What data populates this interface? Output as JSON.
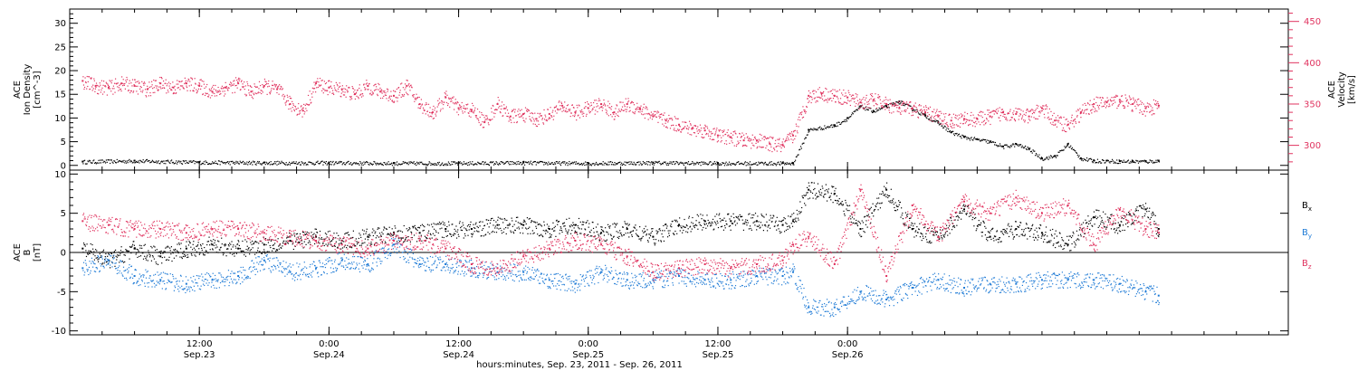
{
  "chart_data": [
    {
      "type": "scatter",
      "panel": "plasma",
      "left_axis": {
        "label_lines": [
          "ACE",
          "Ion Density",
          "[cm^-3]"
        ],
        "ylim": [
          -1,
          33
        ],
        "ticks": [
          0,
          5,
          10,
          15,
          20,
          25,
          30
        ],
        "tick_labels": [
          "0",
          "5",
          "10",
          "15",
          "20",
          "25",
          "30"
        ],
        "color": "#000000"
      },
      "right_axis": {
        "label_lines": [
          "ACE",
          "Velocity",
          "[km/s]"
        ],
        "ylim": [
          270,
          465
        ],
        "ticks": [
          300,
          350,
          400,
          450
        ],
        "tick_labels": [
          "300",
          "350",
          "400",
          "450"
        ],
        "color": "#e0335f"
      },
      "series": [
        {
          "axis": "left",
          "color": "#000000",
          "x": [
            -0.95,
            -0.75,
            -0.5,
            -0.25,
            0,
            0.25,
            0.5,
            0.75,
            1.0,
            1.25,
            1.5,
            1.75,
            1.79,
            1.85,
            1.95,
            2.0,
            2.05,
            2.1,
            2.15,
            2.2,
            2.25,
            2.3,
            2.35,
            2.4,
            2.45,
            2.5,
            2.55,
            2.6,
            2.65,
            2.7,
            2.75,
            2.8,
            2.85,
            2.9,
            2.95,
            3.0,
            3.05,
            3.1,
            3.15,
            3.2
          ],
          "y": [
            0.8,
            1.0,
            0.7,
            0.6,
            0.6,
            0.5,
            0.5,
            0.6,
            0.5,
            0.6,
            0.5,
            0.5,
            0.5,
            7.5,
            8.5,
            10.0,
            12.5,
            11.5,
            12.5,
            13.5,
            12.0,
            10.5,
            9.0,
            7.0,
            6.0,
            5.5,
            5.0,
            4.0,
            4.5,
            3.5,
            1.5,
            2.0,
            4.5,
            1.5,
            1.0,
            1.0,
            0.9,
            0.9,
            0.9,
            1.0
          ]
        },
        {
          "axis": "right",
          "color": "#e0335f",
          "x": [
            -0.95,
            -0.9,
            -0.85,
            -0.8,
            -0.75,
            -0.7,
            -0.65,
            -0.6,
            -0.55,
            -0.5,
            -0.45,
            -0.4,
            -0.35,
            -0.3,
            -0.25,
            -0.2,
            -0.15,
            -0.1,
            -0.05,
            0.0,
            0.05,
            0.1,
            0.15,
            0.2,
            0.25,
            0.3,
            0.35,
            0.4,
            0.45,
            0.5,
            0.55,
            0.6,
            0.65,
            0.7,
            0.75,
            0.8,
            0.85,
            0.9,
            0.95,
            1.0,
            1.05,
            1.1,
            1.15,
            1.2,
            1.25,
            1.3,
            1.35,
            1.4,
            1.45,
            1.5,
            1.55,
            1.6,
            1.65,
            1.7,
            1.75,
            1.79,
            1.85,
            1.9,
            1.95,
            2.0,
            2.05,
            2.1,
            2.15,
            2.2,
            2.25,
            2.3,
            2.35,
            2.4,
            2.45,
            2.5,
            2.55,
            2.6,
            2.65,
            2.7,
            2.75,
            2.8,
            2.85,
            2.9,
            2.95,
            3.0,
            3.05,
            3.1,
            3.15,
            3.2
          ],
          "y": [
            378,
            372,
            370,
            375,
            372,
            368,
            375,
            370,
            375,
            372,
            365,
            370,
            375,
            365,
            372,
            368,
            350,
            342,
            375,
            370,
            368,
            362,
            372,
            365,
            360,
            372,
            350,
            340,
            358,
            345,
            343,
            328,
            350,
            335,
            338,
            332,
            338,
            348,
            340,
            345,
            350,
            340,
            350,
            345,
            335,
            330,
            325,
            320,
            318,
            312,
            310,
            306,
            306,
            302,
            300,
            312,
            360,
            363,
            360,
            358,
            352,
            355,
            350,
            345,
            345,
            340,
            335,
            330,
            332,
            332,
            335,
            340,
            338,
            335,
            345,
            330,
            325,
            340,
            350,
            352,
            355,
            350,
            345,
            348
          ]
        }
      ]
    },
    {
      "type": "scatter",
      "panel": "magnetic-field",
      "left_axis": {
        "label_lines": [
          "ACE",
          "B",
          "[nT]"
        ],
        "ylim": [
          -10.5,
          10.5
        ],
        "ticks": [
          -10,
          -5,
          0,
          5,
          10
        ],
        "tick_labels": [
          "-10",
          "-5",
          "0",
          "5",
          "10"
        ],
        "color": "#000000"
      },
      "zero_line": true,
      "legend": {
        "placement": "right",
        "entries": [
          {
            "name": "B",
            "subscript": "x",
            "color": "#000000"
          },
          {
            "name": "B",
            "subscript": "y",
            "color": "#1f7bd6"
          },
          {
            "name": "B",
            "subscript": "z",
            "color": "#e0335f"
          }
        ]
      },
      "series": [
        {
          "name": "Bx",
          "color": "#000000",
          "x": [
            -0.95,
            -0.85,
            -0.75,
            -0.65,
            -0.55,
            -0.45,
            -0.35,
            -0.25,
            -0.15,
            -0.05,
            0.05,
            0.15,
            0.25,
            0.35,
            0.45,
            0.55,
            0.65,
            0.75,
            0.85,
            0.95,
            1.05,
            1.15,
            1.25,
            1.35,
            1.45,
            1.55,
            1.65,
            1.75,
            1.79,
            1.85,
            1.95,
            2.05,
            2.15,
            2.25,
            2.35,
            2.45,
            2.55,
            2.65,
            2.75,
            2.85,
            2.95,
            3.05,
            3.15,
            3.2
          ],
          "y": [
            0.5,
            -1.0,
            0.5,
            -0.5,
            0.5,
            1.0,
            0.5,
            1.0,
            1.5,
            2.0,
            1.5,
            2.0,
            2.5,
            2.5,
            3.0,
            3.0,
            3.5,
            3.5,
            3.0,
            3.5,
            2.5,
            3.0,
            2.0,
            3.5,
            4.0,
            4.0,
            4.0,
            3.5,
            4.0,
            8.0,
            7.5,
            3.0,
            8.0,
            3.0,
            2.0,
            5.5,
            2.0,
            3.0,
            2.5,
            1.0,
            4.5,
            3.5,
            5.5,
            3.0
          ]
        },
        {
          "name": "By",
          "color": "#1f7bd6",
          "x": [
            -0.95,
            -0.85,
            -0.75,
            -0.65,
            -0.55,
            -0.45,
            -0.35,
            -0.25,
            -0.15,
            -0.05,
            0.05,
            0.15,
            0.25,
            0.35,
            0.45,
            0.55,
            0.65,
            0.75,
            0.85,
            0.95,
            1.05,
            1.15,
            1.25,
            1.35,
            1.45,
            1.55,
            1.65,
            1.75,
            1.79,
            1.85,
            1.95,
            2.05,
            2.15,
            2.25,
            2.35,
            2.45,
            2.55,
            2.65,
            2.75,
            2.85,
            2.95,
            3.05,
            3.15,
            3.2
          ],
          "y": [
            -2.0,
            -1.0,
            -3.0,
            -3.5,
            -4.0,
            -3.5,
            -3.0,
            -1.0,
            -2.5,
            -2.0,
            -1.0,
            -1.5,
            1.0,
            -1.5,
            -1.5,
            -2.0,
            -2.5,
            -2.5,
            -3.5,
            -4.0,
            -2.5,
            -3.5,
            -3.5,
            -3.0,
            -3.5,
            -3.5,
            -3.0,
            -3.0,
            -2.5,
            -7.0,
            -7.0,
            -5.0,
            -6.0,
            -4.5,
            -3.5,
            -4.5,
            -4.0,
            -4.0,
            -3.5,
            -3.5,
            -3.5,
            -4.0,
            -5.0,
            -5.5
          ]
        },
        {
          "name": "Bz",
          "color": "#e0335f",
          "x": [
            -0.95,
            -0.85,
            -0.75,
            -0.65,
            -0.55,
            -0.45,
            -0.35,
            -0.25,
            -0.15,
            -0.05,
            0.05,
            0.15,
            0.25,
            0.35,
            0.45,
            0.55,
            0.65,
            0.75,
            0.85,
            0.95,
            1.05,
            1.15,
            1.25,
            1.35,
            1.45,
            1.55,
            1.65,
            1.75,
            1.79,
            1.85,
            1.95,
            2.05,
            2.15,
            2.25,
            2.35,
            2.45,
            2.55,
            2.65,
            2.75,
            2.85,
            2.95,
            3.05,
            3.15,
            3.2
          ],
          "y": [
            4.0,
            3.5,
            3.0,
            3.0,
            2.5,
            3.0,
            3.0,
            2.5,
            2.0,
            1.5,
            1.0,
            0.5,
            1.5,
            1.5,
            0.5,
            -1.5,
            -2.0,
            -0.5,
            0.5,
            1.5,
            1.0,
            -0.5,
            -2.5,
            -2.0,
            -1.5,
            -2.0,
            -1.5,
            -1.0,
            1.0,
            2.0,
            -1.5,
            8.0,
            -3.0,
            6.0,
            2.0,
            6.5,
            5.0,
            7.0,
            5.0,
            6.0,
            1.0,
            5.5,
            3.0,
            2.5
          ]
        }
      ]
    }
  ],
  "x_axis": {
    "xlim": [
      -1.0,
      3.7
    ],
    "xlabel": "hours:minutes, Sep. 23, 2011 - Sep. 26, 2011",
    "ticks": [
      {
        "x": -0.5,
        "time": "12:00",
        "date": "Sep.23"
      },
      {
        "x": 0.0,
        "time": "0:00",
        "date": "Sep.24"
      },
      {
        "x": 0.5,
        "time": "12:00",
        "date": "Sep.24"
      },
      {
        "x": 1.0,
        "time": "0:00",
        "date": "Sep.25"
      },
      {
        "x": 1.5,
        "time": "12:00",
        "date": "Sep.25"
      },
      {
        "x": 2.0,
        "time": "0:00",
        "date": "Sep.26"
      }
    ]
  }
}
